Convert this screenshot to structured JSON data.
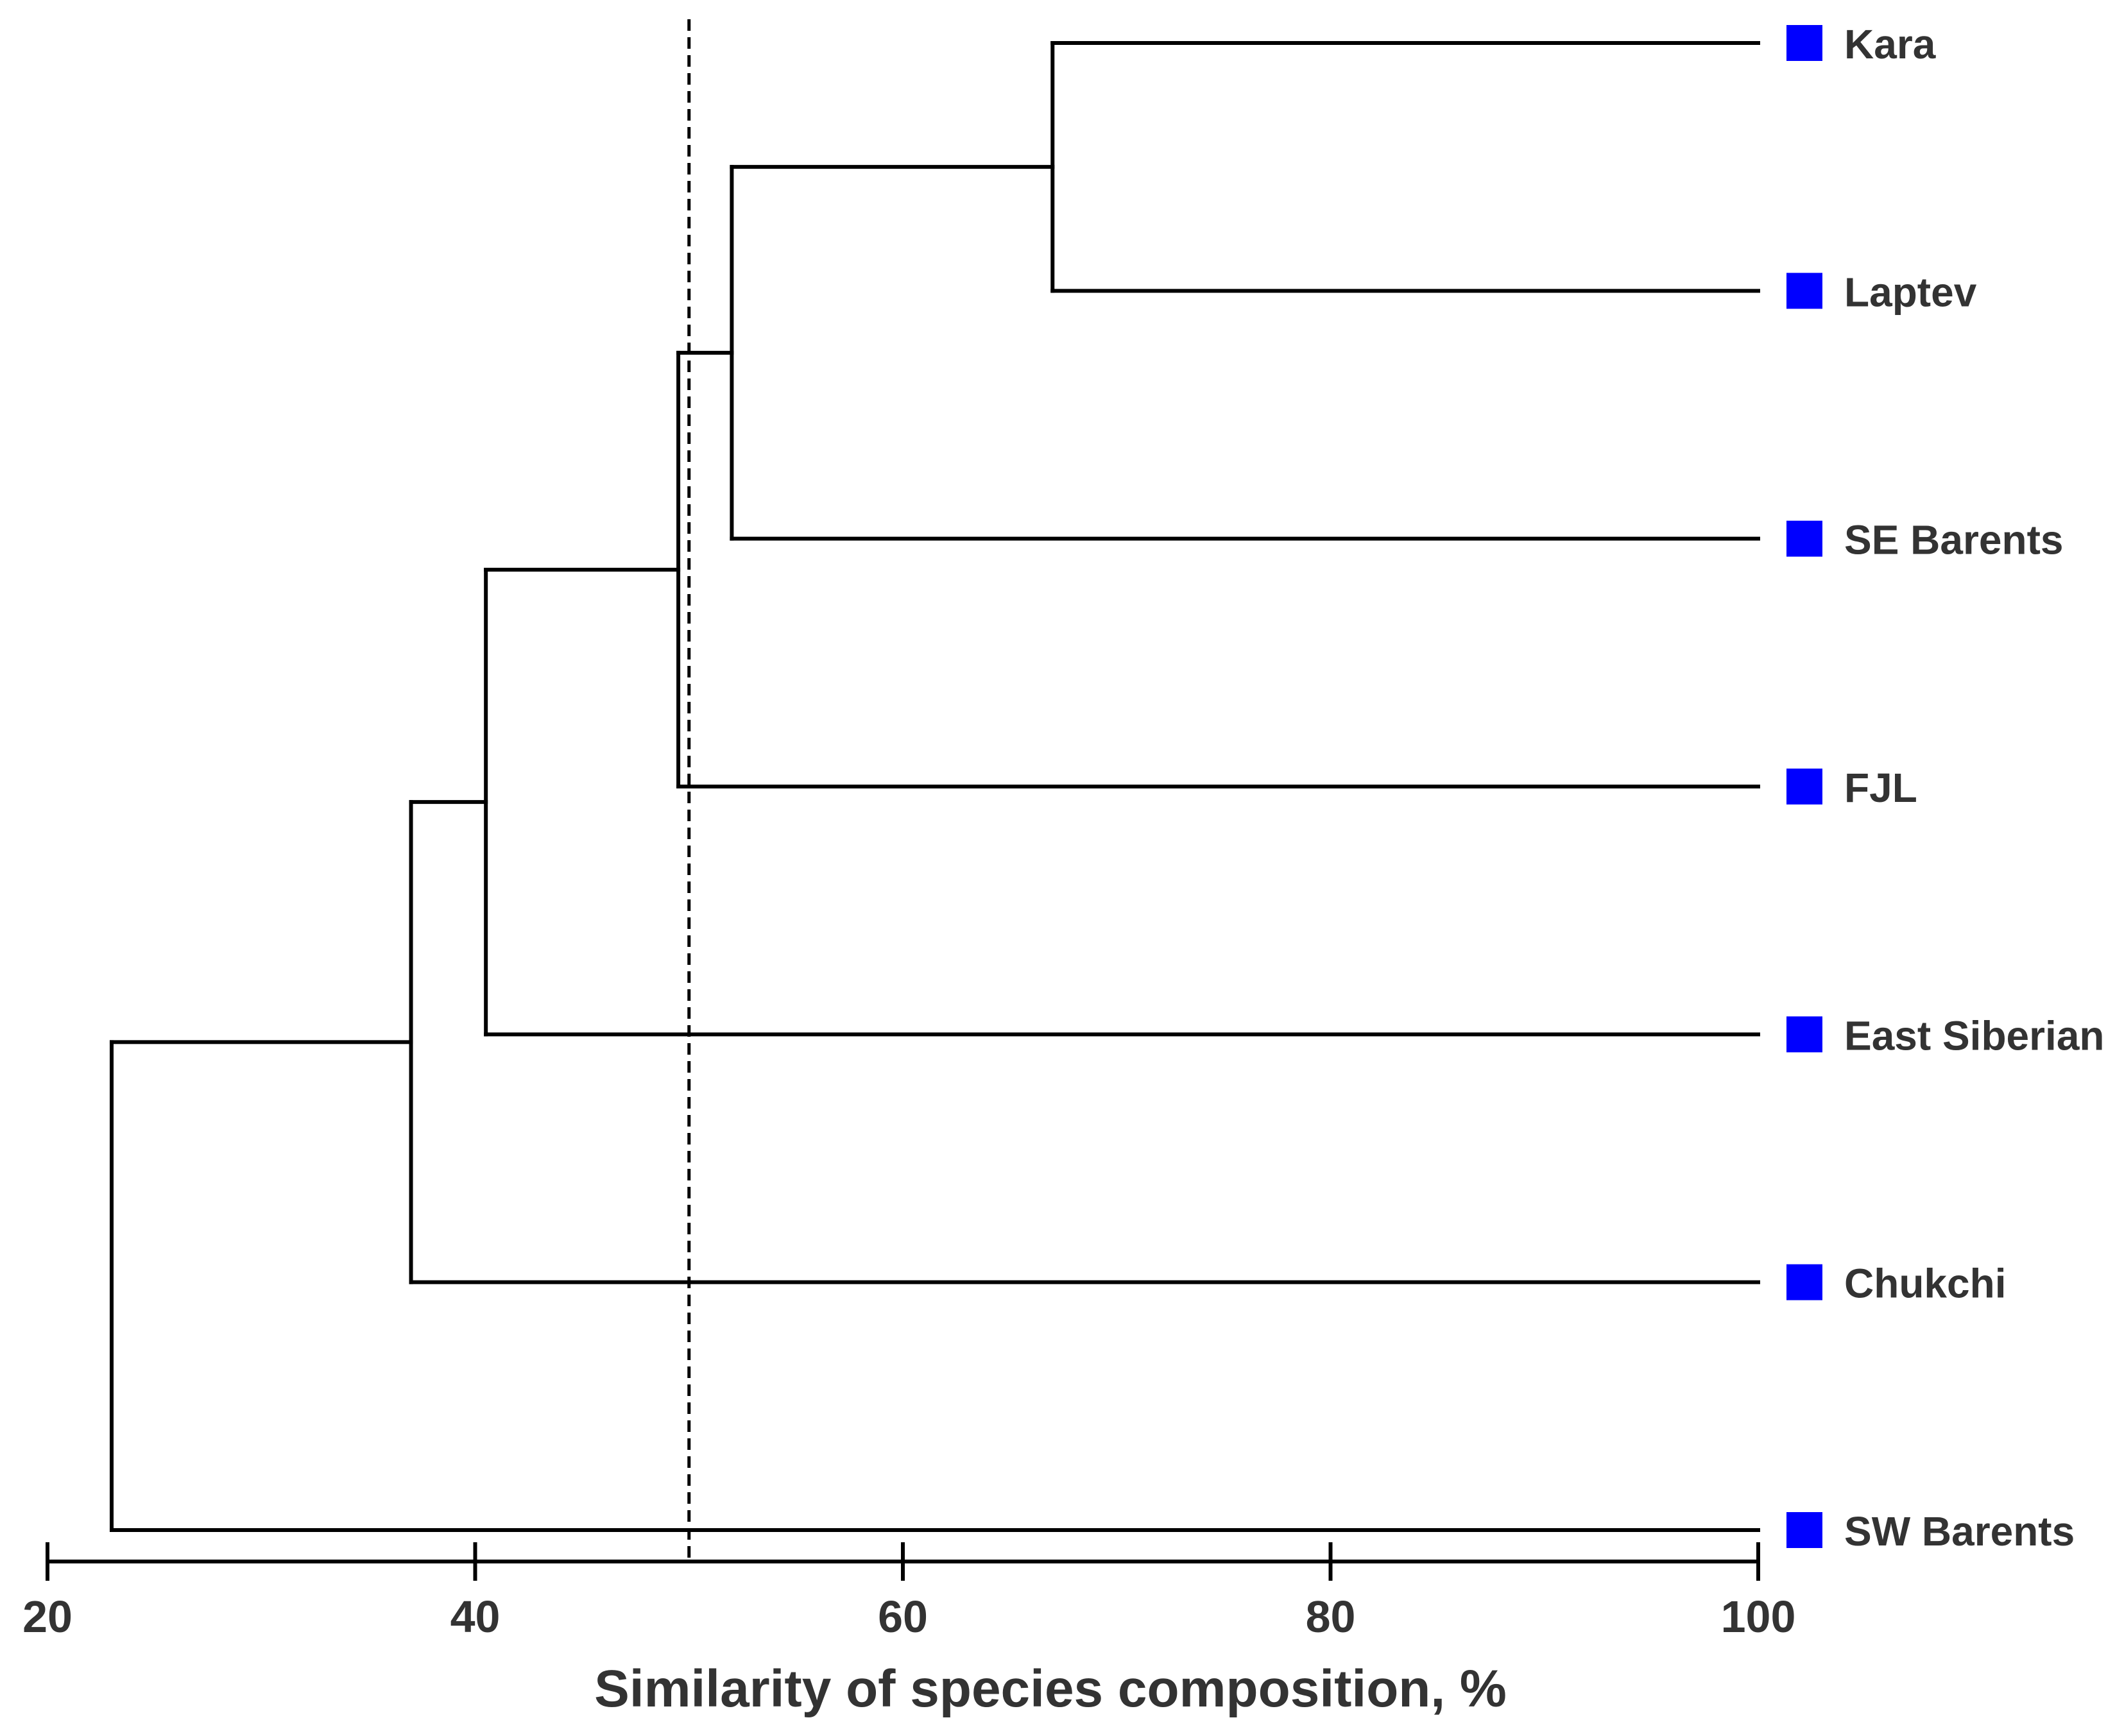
{
  "chart_data": {
    "type": "dendrogram",
    "title": "",
    "xlabel": "Similarity of species composition, %",
    "xlim": [
      20,
      100
    ],
    "x_ticks": [
      20,
      40,
      60,
      80,
      100
    ],
    "threshold": 50,
    "marker_color": "#0000ff",
    "line_color": "#000000",
    "leaves": [
      "Kara",
      "Laptev",
      "SE Barents",
      "FJL",
      "East Siberian",
      "Chukchi",
      "SW Barents"
    ],
    "merges": [
      {
        "id": "n1",
        "children": [
          "Kara",
          "Laptev"
        ],
        "similarity": 67
      },
      {
        "id": "n2",
        "children": [
          "n1",
          "SE Barents"
        ],
        "similarity": 52
      },
      {
        "id": "n3",
        "children": [
          "n2",
          "FJL"
        ],
        "similarity": 49.5
      },
      {
        "id": "n4",
        "children": [
          "n3",
          "East Siberian"
        ],
        "similarity": 40.5
      },
      {
        "id": "n5",
        "children": [
          "n4",
          "Chukchi"
        ],
        "similarity": 37
      },
      {
        "id": "n6",
        "children": [
          "n5",
          "SW Barents"
        ],
        "similarity": 23
      }
    ]
  }
}
